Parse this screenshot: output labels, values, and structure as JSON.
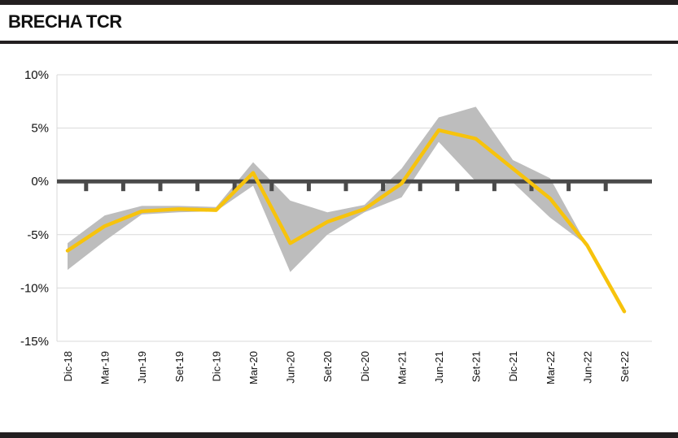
{
  "header": {
    "title": "BRECHA TCR"
  },
  "colors": {
    "line": "#f7c30c",
    "band": "#bdbdbd",
    "zero_line": "#4a4a4a",
    "grid": "#d9d9d9",
    "frame": "#231f20"
  },
  "chart_data": {
    "type": "line",
    "title": "BRECHA TCR",
    "xlabel": "",
    "ylabel": "",
    "ylim": [
      -15,
      10
    ],
    "yticks": [
      10,
      5,
      0,
      -5,
      -10,
      -15
    ],
    "ytick_labels": [
      "10%",
      "5%",
      "0%",
      "-5%",
      "-10%",
      "-15%"
    ],
    "grid": true,
    "categories": [
      "Dic-18",
      "Mar-19",
      "Jun-19",
      "Set-19",
      "Dic-19",
      "Mar-20",
      "Jun-20",
      "Set-20",
      "Dic-20",
      "Mar-21",
      "Jun-21",
      "Set-21",
      "Dic-21",
      "Mar-22",
      "Jun-22",
      "Set-22"
    ],
    "series": [
      {
        "type": "line",
        "values": [
          -6.5,
          -4.2,
          -2.8,
          -2.6,
          -2.7,
          0.8,
          -5.8,
          -3.8,
          -2.6,
          -0.2,
          4.8,
          4.0,
          1.2,
          -1.6,
          -6.0,
          -12.2
        ]
      },
      {
        "type": "band",
        "upper": [
          -5.8,
          -3.2,
          -2.3,
          -2.3,
          -2.4,
          1.8,
          -1.8,
          -2.9,
          -2.2,
          1.2,
          6.0,
          7.0,
          2.0,
          0.3,
          -6.0,
          null
        ],
        "lower": [
          -8.3,
          -5.6,
          -3.1,
          -2.9,
          -2.8,
          -0.4,
          -8.5,
          -5.0,
          -2.9,
          -1.5,
          3.7,
          0.0,
          -0.1,
          -3.4,
          -6.0,
          null
        ]
      }
    ]
  }
}
